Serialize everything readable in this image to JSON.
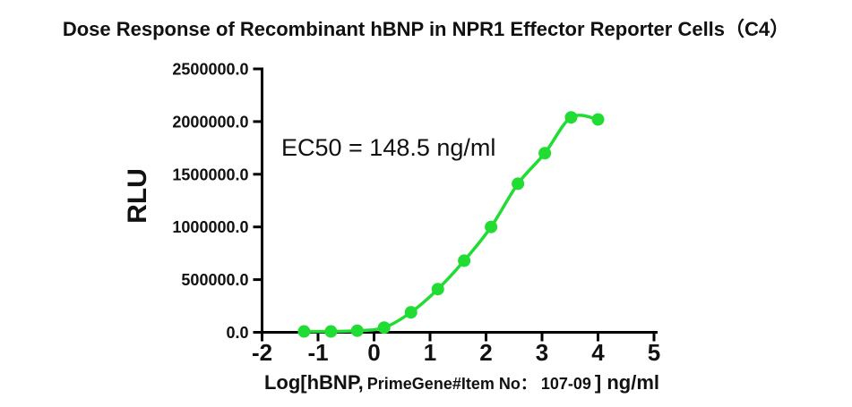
{
  "header": {
    "title": "Dose Response of Recombinant hBNP in NPR1 Effector Reporter Cells（C4）"
  },
  "annotation": {
    "ec50_label": "EC50 = 148.5 ng/ml"
  },
  "axes": {
    "y_title": "RLU",
    "x_title_prefix": "Log[hBNP,",
    "x_title_middle": "PrimeGene#Item No： 107-09",
    "x_title_suffix": "] ng/ml"
  },
  "colors": {
    "curve": "#21DC32",
    "axis": "#000000",
    "text": "#111111",
    "background": "#ffffff"
  },
  "chart_data": {
    "type": "scatter",
    "title": "Dose Response of Recombinant hBNP in NPR1 Effector Reporter Cells（C4）",
    "xlabel": "Log[hBNP, PrimeGene#Item No： 107-09] ng/ml",
    "ylabel": "RLU",
    "annotation": "EC50 = 148.5 ng/ml",
    "ec50_ng_ml": 148.5,
    "xlim": [
      -2,
      5
    ],
    "ylim": [
      0,
      2500000
    ],
    "x_ticks": [
      -2,
      -1,
      0,
      1,
      2,
      3,
      4,
      5
    ],
    "y_ticks": [
      0,
      500000,
      1000000,
      1500000,
      2000000,
      2500000
    ],
    "y_tick_labels": [
      "0.0",
      "500000.0",
      "1000000.0",
      "1500000.0",
      "2000000.0",
      "2500000.0"
    ],
    "grid": false,
    "legend_position": "none",
    "fit": "sigmoidal dose-response curve through points",
    "series": [
      {
        "name": "hBNP",
        "marker": "circle",
        "color": "#21DC32",
        "x": [
          -1.25,
          -0.77,
          -0.3,
          0.18,
          0.66,
          1.14,
          1.61,
          2.09,
          2.57,
          3.05,
          3.52,
          4.0
        ],
        "y": [
          8000,
          8000,
          15000,
          45000,
          190000,
          410000,
          680000,
          1000000,
          1410000,
          1700000,
          2040000,
          2020000
        ]
      }
    ]
  }
}
